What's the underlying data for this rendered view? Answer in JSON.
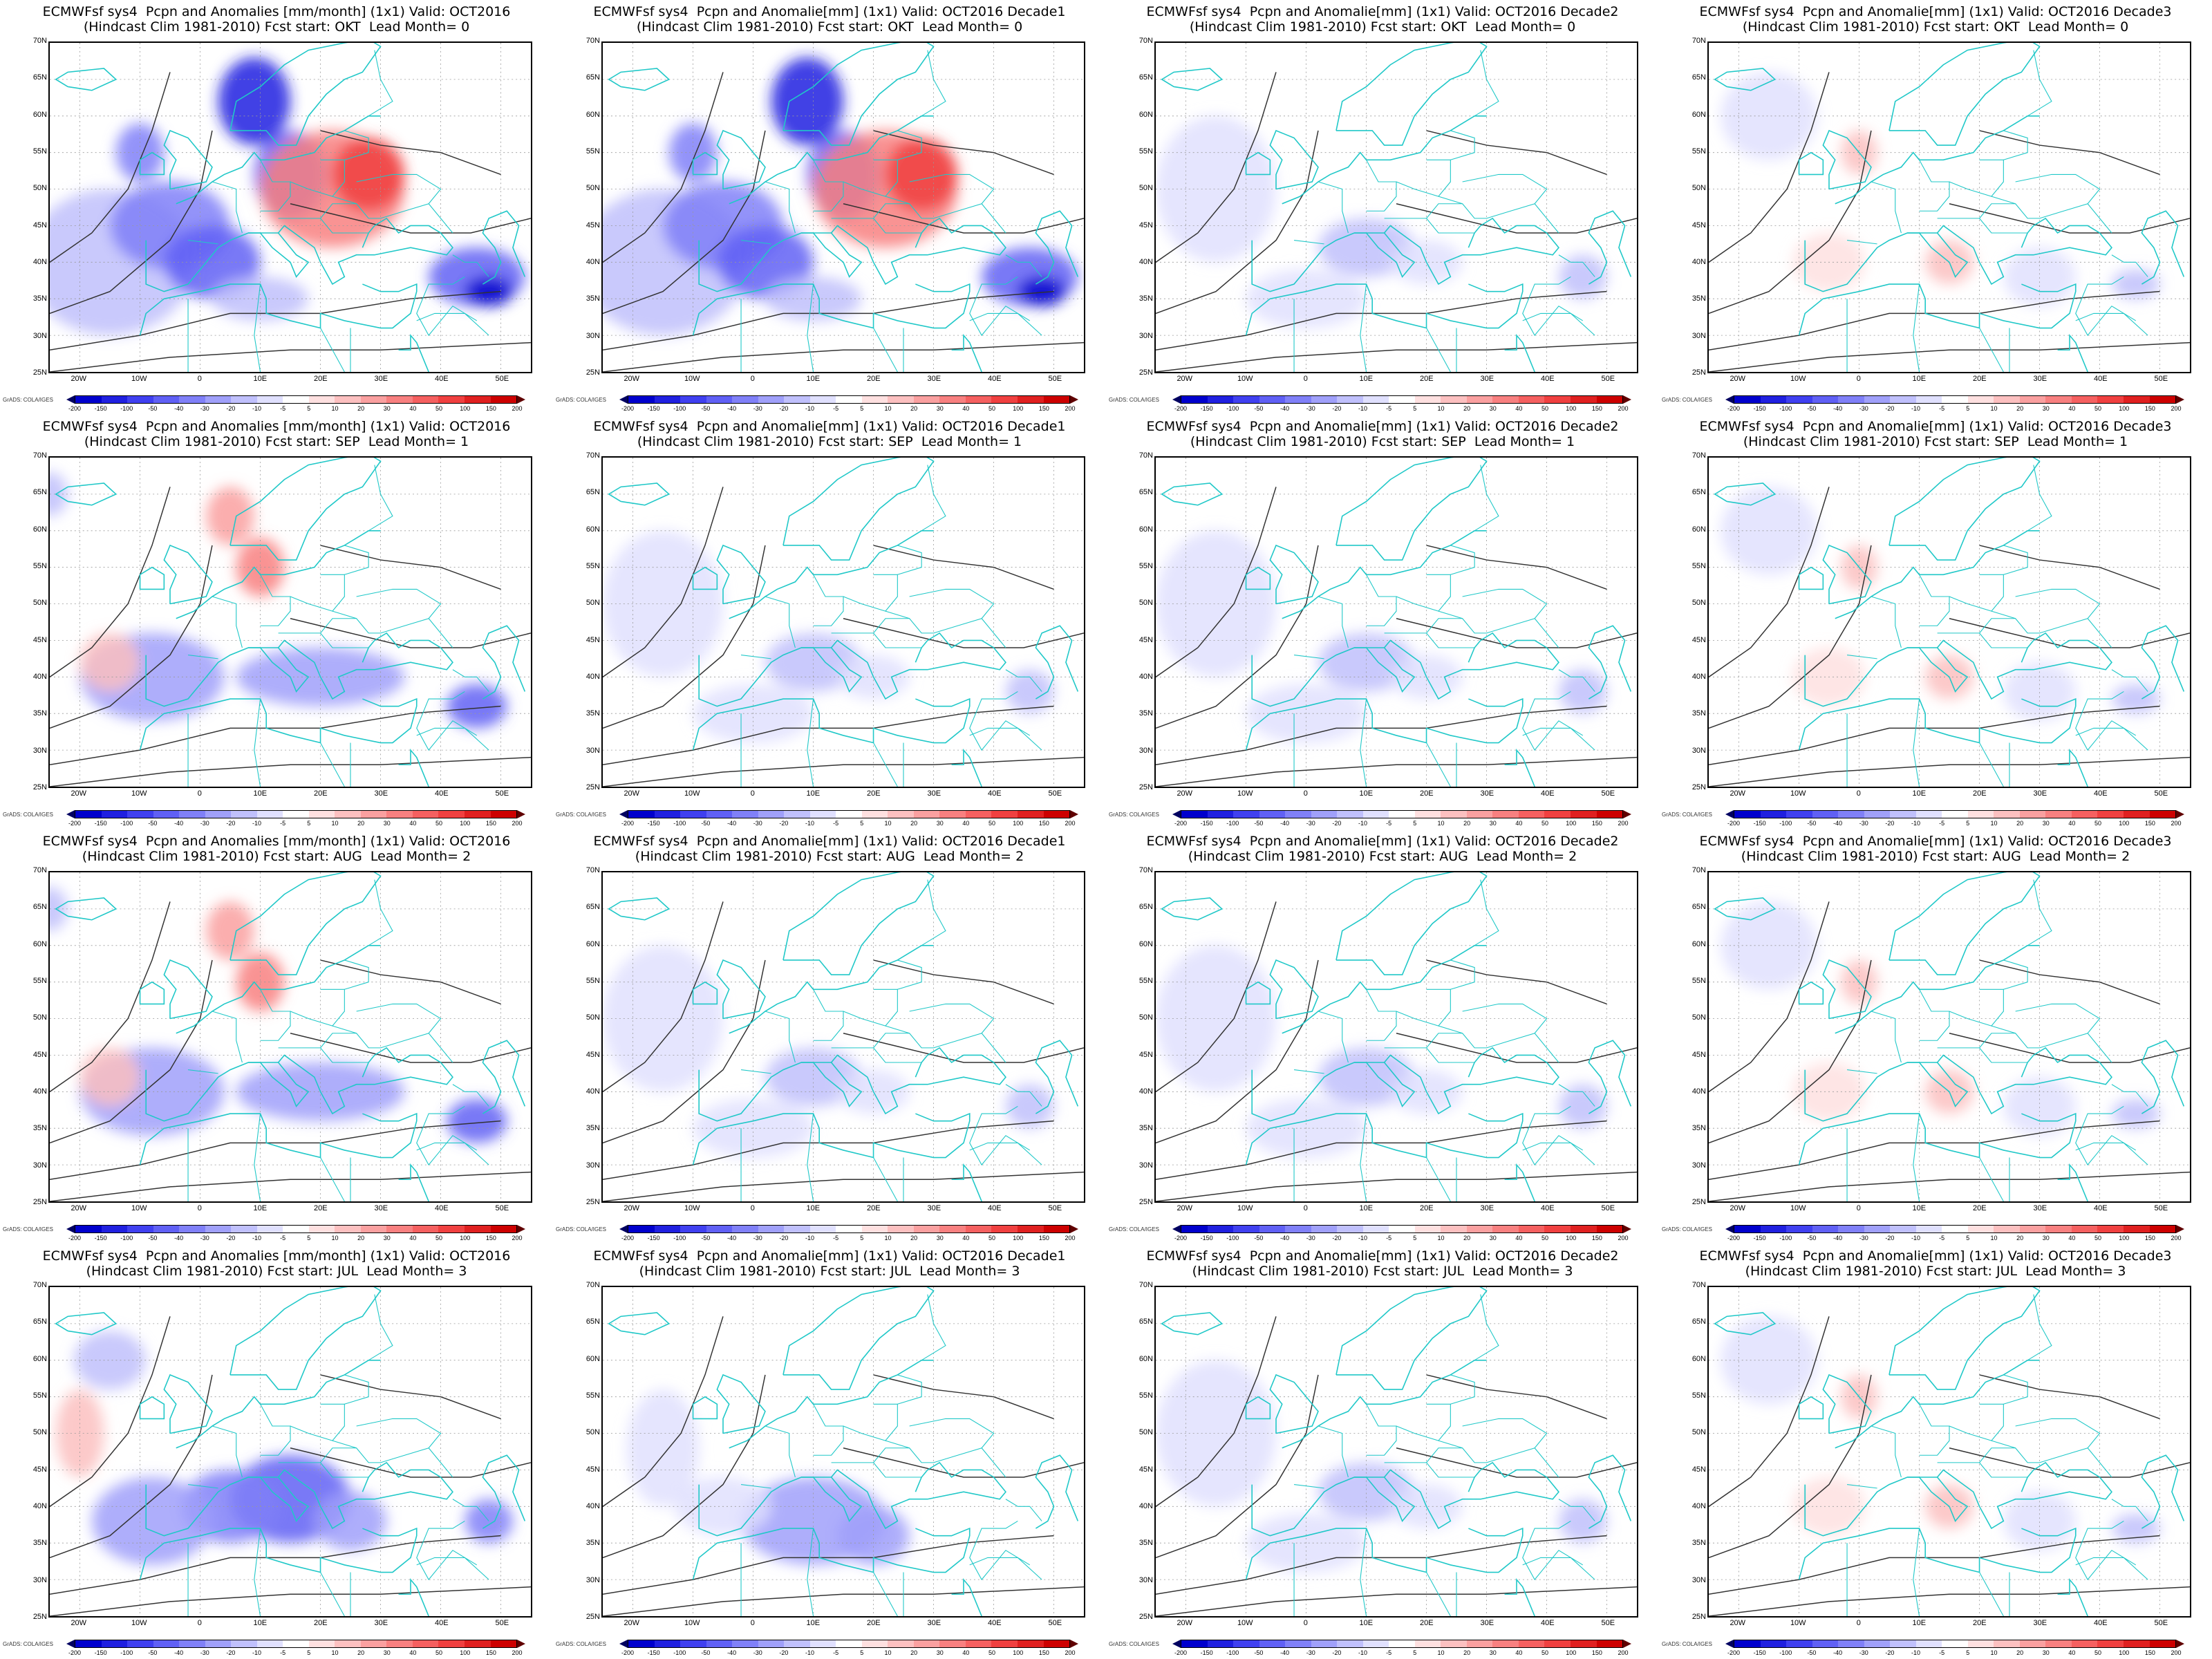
{
  "credit": "GrADS: COLA/IGES",
  "lat_labels": [
    "70N",
    "65N",
    "60N",
    "55N",
    "50N",
    "45N",
    "40N",
    "35N",
    "30N",
    "25N"
  ],
  "lon_labels": [
    "20W",
    "10W",
    "0",
    "10E",
    "20E",
    "30E",
    "40E",
    "50E"
  ],
  "colorbar": {
    "labels": [
      "-200",
      "-150",
      "-100",
      "-50",
      "-40",
      "-30",
      "-20",
      "-10",
      "-5",
      "5",
      "10",
      "20",
      "30",
      "40",
      "50",
      "100",
      "150",
      "200"
    ],
    "colors": [
      "#00008b",
      "#0000cd",
      "#2020e0",
      "#4040f0",
      "#6060f5",
      "#8080f8",
      "#a0a0fa",
      "#c0c0fc",
      "#e0e0fe",
      "#ffffff",
      "#fee0e0",
      "#fcc0c0",
      "#faa0a0",
      "#f88080",
      "#f56060",
      "#f04040",
      "#e02020",
      "#cd0000",
      "#8b0000"
    ]
  },
  "panels": [
    {
      "t1": "ECMWFsf sys4  Pcpn and Anomalies [mm/month] (1x1) Valid: OCT2016",
      "t2": "(Hindcast Clim 1981-2010) Fcst start: OKT  Lead Month= 0",
      "pattern": "strong_mixed"
    },
    {
      "t1": "ECMWFsf sys4  Pcpn and Anomalie[mm] (1x1) Valid: OCT2016 Decade1",
      "t2": "(Hindcast Clim 1981-2010) Fcst start: OKT  Lead Month= 0",
      "pattern": "strong_mixed"
    },
    {
      "t1": "ECMWFsf sys4  Pcpn and Anomalie[mm] (1x1) Valid: OCT2016 Decade2",
      "t2": "(Hindcast Clim 1981-2010) Fcst start: OKT  Lead Month= 0",
      "pattern": "weak_blue"
    },
    {
      "t1": "ECMWFsf sys4  Pcpn and Anomalie[mm] (1x1) Valid: OCT2016 Decade3",
      "t2": "(Hindcast Clim 1981-2010) Fcst start: OKT  Lead Month= 0",
      "pattern": "weak_mixed"
    },
    {
      "t1": "ECMWFsf sys4  Pcpn and Anomalies [mm/month] (1x1) Valid: OCT2016",
      "t2": "(Hindcast Clim 1981-2010) Fcst start: SEP  Lead Month= 1",
      "pattern": "med_mixed"
    },
    {
      "t1": "ECMWFsf sys4  Pcpn and Anomalie[mm] (1x1) Valid: OCT2016 Decade1",
      "t2": "(Hindcast Clim 1981-2010) Fcst start: SEP  Lead Month= 1",
      "pattern": "weak_blue"
    },
    {
      "t1": "ECMWFsf sys4  Pcpn and Anomalie[mm] (1x1) Valid: OCT2016 Decade2",
      "t2": "(Hindcast Clim 1981-2010) Fcst start: SEP  Lead Month= 1",
      "pattern": "weak_blue"
    },
    {
      "t1": "ECMWFsf sys4  Pcpn and Anomalie[mm] (1x1) Valid: OCT2016 Decade3",
      "t2": "(Hindcast Clim 1981-2010) Fcst start: SEP  Lead Month= 1",
      "pattern": "weak_mixed"
    },
    {
      "t1": "ECMWFsf sys4  Pcpn and Anomalies [mm/month] (1x1) Valid: OCT2016",
      "t2": "(Hindcast Clim 1981-2010) Fcst start: AUG  Lead Month= 2",
      "pattern": "med_mixed"
    },
    {
      "t1": "ECMWFsf sys4  Pcpn and Anomalie[mm] (1x1) Valid: OCT2016 Decade1",
      "t2": "(Hindcast Clim 1981-2010) Fcst start: AUG  Lead Month= 2",
      "pattern": "weak_blue"
    },
    {
      "t1": "ECMWFsf sys4  Pcpn and Anomalie[mm] (1x1) Valid: OCT2016 Decade2",
      "t2": "(Hindcast Clim 1981-2010) Fcst start: AUG  Lead Month= 2",
      "pattern": "weak_blue"
    },
    {
      "t1": "ECMWFsf sys4  Pcpn and Anomalie[mm] (1x1) Valid: OCT2016 Decade3",
      "t2": "(Hindcast Clim 1981-2010) Fcst start: AUG  Lead Month= 2",
      "pattern": "weak_mixed"
    },
    {
      "t1": "ECMWFsf sys4  Pcpn and Anomalies [mm/month] (1x1) Valid: OCT2016",
      "t2": "(Hindcast Clim 1981-2010) Fcst start: JUL  Lead Month= 3",
      "pattern": "strong_blue"
    },
    {
      "t1": "ECMWFsf sys4  Pcpn and Anomalie[mm] (1x1) Valid: OCT2016 Decade1",
      "t2": "(Hindcast Clim 1981-2010) Fcst start: JUL  Lead Month= 3",
      "pattern": "med_blue"
    },
    {
      "t1": "ECMWFsf sys4  Pcpn and Anomalie[mm] (1x1) Valid: OCT2016 Decade2",
      "t2": "(Hindcast Clim 1981-2010) Fcst start: JUL  Lead Month= 3",
      "pattern": "weak_blue"
    },
    {
      "t1": "ECMWFsf sys4  Pcpn and Anomalie[mm] (1x1) Valid: OCT2016 Decade3",
      "t2": "(Hindcast Clim 1981-2010) Fcst start: JUL  Lead Month= 3",
      "pattern": "weak_mixed"
    }
  ]
}
